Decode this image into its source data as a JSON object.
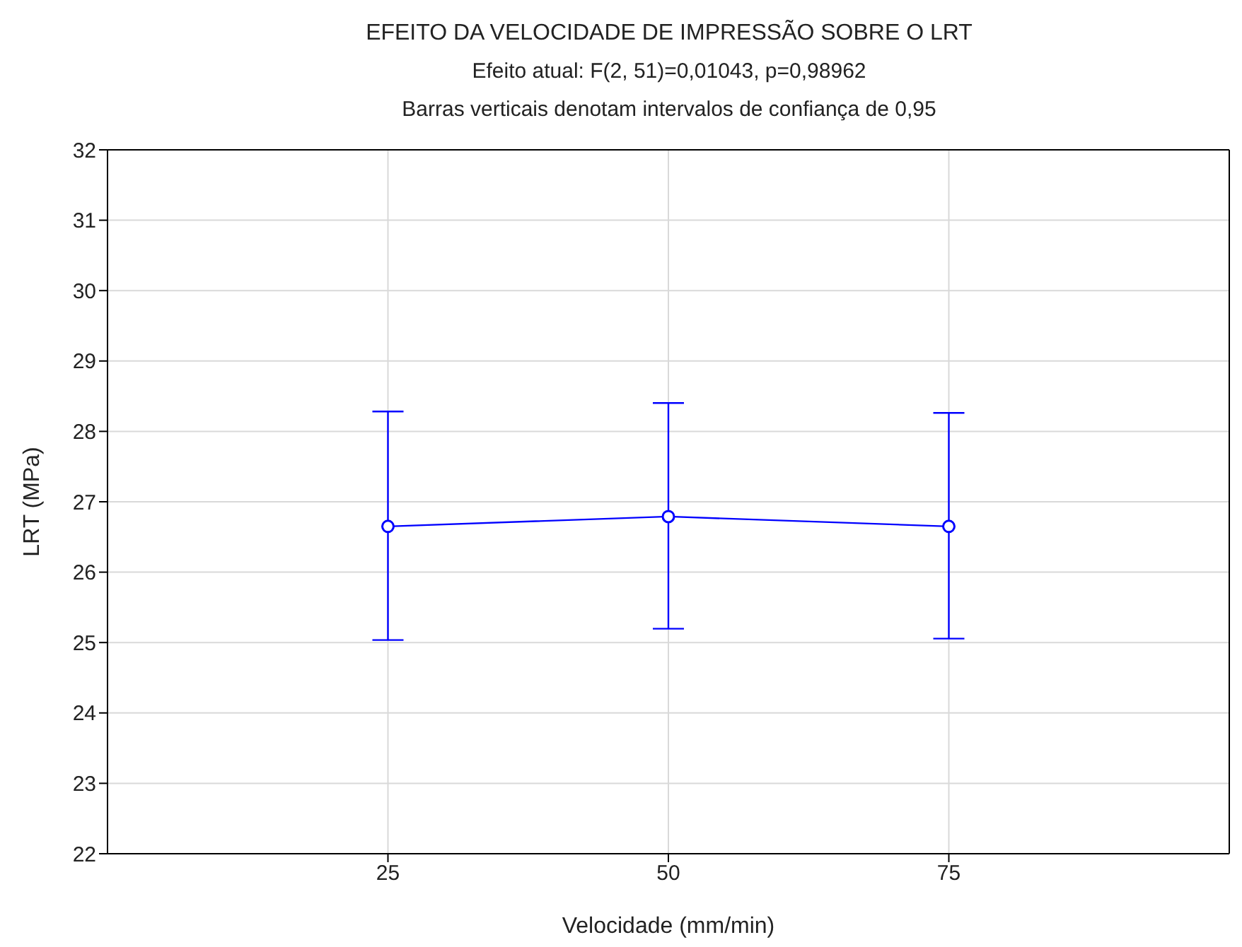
{
  "chart_data": {
    "type": "line",
    "title": "EFEITO DA VELOCIDADE DE IMPRESSÃO SOBRE O LRT",
    "subtitle": "Efeito atual: F(2, 51)=0,01043, p=0,98962",
    "annotations": [
      "Barras verticais denotam intervalos de confiança de 0,95"
    ],
    "xlabel": "Velocidade (mm/min)",
    "ylabel": "LRT (MPa)",
    "categories": [
      "25",
      "50",
      "75"
    ],
    "color": "#0000ff",
    "values": [
      26.65,
      26.79,
      26.65
    ],
    "errors": [
      [
        25.03,
        28.27
      ],
      [
        25.19,
        28.39
      ],
      [
        25.05,
        28.25
      ]
    ],
    "ylim": [
      22,
      32
    ],
    "yticks": [
      22,
      23,
      24,
      25,
      26,
      27,
      28,
      29,
      30,
      31,
      32
    ],
    "grid": true,
    "marker": "circle",
    "line_style": "solid"
  }
}
